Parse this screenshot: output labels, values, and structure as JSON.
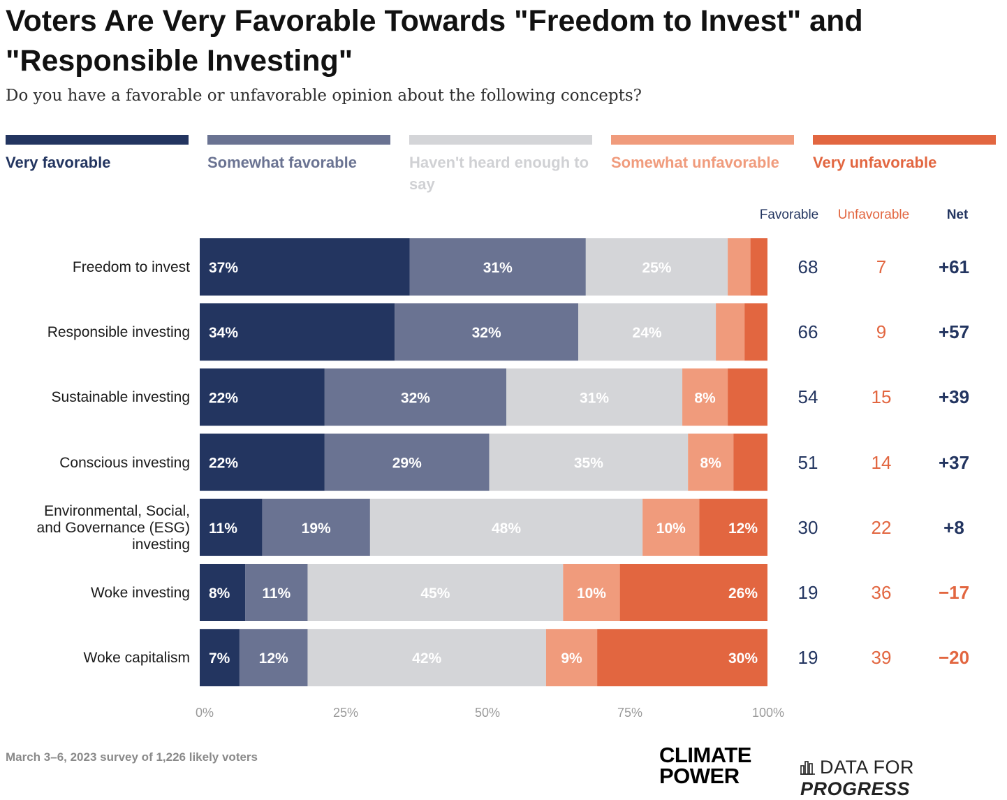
{
  "title": "Voters Are Very Favorable Towards \"Freedom to Invest\" and \"Responsible Investing\"",
  "subtitle": "Do you have a favorable or unfavorable opinion about the following concepts?",
  "colors": {
    "very_favorable": "#233560",
    "somewhat_favorable": "#6a7392",
    "havent_heard": "#d4d5d8",
    "somewhat_unfavorable": "#f09b7c",
    "very_unfavorable": "#e26640"
  },
  "legend": [
    {
      "label": "Very favorable",
      "color": "#233560",
      "text_color": "#233560"
    },
    {
      "label": "Somewhat favorable",
      "color": "#6a7392",
      "text_color": "#6a7392"
    },
    {
      "label": "Haven't heard enough to say",
      "color": "#d4d5d8",
      "text_color": "#d0d1d4"
    },
    {
      "label": "Somewhat unfavorable",
      "color": "#f09b7c",
      "text_color": "#f09b7c"
    },
    {
      "label": "Very unfavorable",
      "color": "#e26640",
      "text_color": "#e26640"
    }
  ],
  "column_headers": {
    "favorable": "Favorable",
    "unfavorable": "Unfavorable",
    "net": "Net"
  },
  "axis_ticks": [
    "0%",
    "25%",
    "50%",
    "75%",
    "100%"
  ],
  "source": "March 3–6, 2023 survey of 1,226 likely voters",
  "logos": {
    "climate_power_line1": "CLIMATE",
    "climate_power_line2": "POWER",
    "dfp_part1": "DATA FOR ",
    "dfp_part2": "PROGRESS"
  },
  "chart_data": {
    "type": "bar",
    "orientation": "horizontal-stacked-100",
    "title": "Voters Are Very Favorable Towards \"Freedom to Invest\" and \"Responsible Investing\"",
    "subtitle": "Do you have a favorable or unfavorable opinion about the following concepts?",
    "xlim": [
      0,
      100
    ],
    "grid": false,
    "legend_position": "top",
    "categories": [
      [
        "Freedom to invest"
      ],
      [
        "Responsible investing"
      ],
      [
        "Sustainable investing"
      ],
      [
        "Conscious investing"
      ],
      [
        "Environmental, Social,",
        "and Governance (ESG)",
        "investing"
      ],
      [
        "Woke investing"
      ],
      [
        "Woke capitalism"
      ]
    ],
    "series": [
      {
        "name": "Very favorable",
        "values": [
          37,
          34,
          22,
          22,
          11,
          8,
          7
        ],
        "labels": [
          "37%",
          "34%",
          "22%",
          "22%",
          "11%",
          "8%",
          "7%"
        ]
      },
      {
        "name": "Somewhat favorable",
        "values": [
          31,
          32,
          32,
          29,
          19,
          11,
          12
        ],
        "labels": [
          "31%",
          "32%",
          "32%",
          "29%",
          "19%",
          "11%",
          "12%"
        ]
      },
      {
        "name": "Haven't heard enough to say",
        "values": [
          25,
          24,
          31,
          35,
          48,
          45,
          42
        ],
        "labels": [
          "25%",
          "24%",
          "31%",
          "35%",
          "48%",
          "45%",
          "42%"
        ]
      },
      {
        "name": "Somewhat unfavorable",
        "values": [
          4,
          5,
          8,
          8,
          10,
          10,
          9
        ],
        "labels": [
          "",
          "",
          "8%",
          "8%",
          "10%",
          "10%",
          "9%"
        ]
      },
      {
        "name": "Very unfavorable",
        "values": [
          3,
          4,
          7,
          6,
          12,
          26,
          30
        ],
        "labels": [
          "",
          "",
          "",
          "",
          "12%",
          "26%",
          "30%"
        ]
      }
    ],
    "favorable": [
      "68",
      "66",
      "54",
      "51",
      "30",
      "19",
      "19"
    ],
    "unfavorable": [
      "7",
      "9",
      "15",
      "14",
      "22",
      "36",
      "39"
    ],
    "net": [
      "+61",
      "+57",
      "+39",
      "+37",
      "+8",
      "−17",
      "−20"
    ]
  }
}
